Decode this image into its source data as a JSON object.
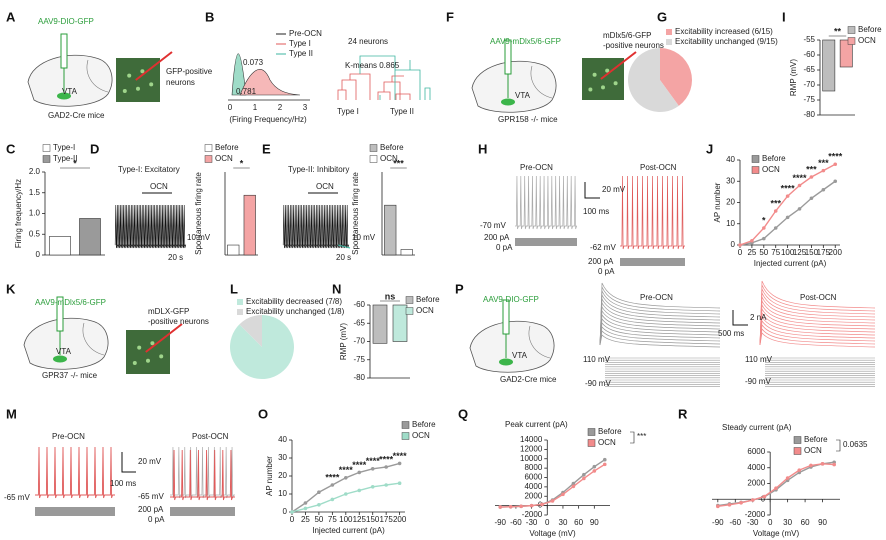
{
  "panels": [
    {
      "label": "A",
      "texts": [
        "AAV9-DIO-GFP",
        "VTA",
        "GAD2-Cre mice",
        "GFP-positive",
        "neurons"
      ]
    },
    {
      "label": "B",
      "texts": [
        "Pre-OCN",
        "Type I",
        "Type II",
        "0.073",
        "0.781",
        "0",
        "1",
        "2",
        "3",
        "(Firing Frequency/Hz)",
        "24 neurons",
        "K-means 0.865",
        "Type I",
        "Type II"
      ]
    },
    {
      "label": "C",
      "texts": []
    },
    {
      "label": "D",
      "texts": [
        "Type-I:  Excitatory",
        "OCN",
        "10 mV",
        "20 s"
      ]
    },
    {
      "label": "E",
      "texts": [
        "Type-II:  Inhibitory",
        "OCN",
        "10 mV",
        "20 s"
      ]
    },
    {
      "label": "F",
      "texts": [
        "AAV9-mDlx5/6-GFP",
        "VTA",
        "GPR158 -/- mice",
        "mDlx5/6-GFP",
        "-positive neurons"
      ]
    },
    {
      "label": "G",
      "texts": []
    },
    {
      "label": "H",
      "texts": [
        "Pre-OCN",
        "Post-OCN",
        "20 mV",
        "100 ms",
        "-70 mV",
        "200 pA",
        "0 pA",
        "-62 mV",
        "200 pA",
        "0 pA"
      ]
    },
    {
      "label": "I",
      "texts": []
    },
    {
      "label": "J",
      "texts": []
    },
    {
      "label": "K",
      "texts": [
        "AAV9-mDlx5/6-GFP",
        "VTA",
        "GPR37 -/- mice",
        "mDLX-GFP",
        "-positive neurons"
      ]
    },
    {
      "label": "L",
      "texts": []
    },
    {
      "label": "M",
      "texts": [
        "Pre-OCN",
        "Post-OCN",
        "20 mV",
        "100 ms",
        "-65 mV",
        "-65 mV",
        "200 pA",
        "0 pA"
      ]
    },
    {
      "label": "N",
      "texts": []
    },
    {
      "label": "O",
      "texts": []
    },
    {
      "label": "P",
      "texts": [
        "AAV9-DIO-GFP",
        "VTA",
        "GAD2-Cre mice",
        "Pre-OCN",
        "Post-OCN",
        "2 nA",
        "500 ms",
        "110 mV",
        "-90 mV",
        "110 mV",
        "-90 mV"
      ]
    },
    {
      "label": "Q",
      "texts": []
    },
    {
      "label": "R",
      "texts": []
    }
  ],
  "chart_data": [
    {
      "type": "bar",
      "ylabel": "Firing frequency/Hz",
      "ylim": [
        0,
        2
      ],
      "yticks": [
        0,
        0.5,
        {
          "value": 1,
          "label": "1.0"
        },
        1.5,
        {
          "value": 2,
          "label": "2.0"
        }
      ],
      "significance": "*",
      "series": [
        {
          "name": "Type-I",
          "color": "#ffffff",
          "values": [
            0.45
          ]
        },
        {
          "name": "Type-II",
          "color": "#9a9a9a",
          "values": [
            0.88
          ]
        }
      ]
    },
    {
      "type": "bar",
      "ylabel": "Spontaneous firing rate",
      "ylim": [
        0,
        2.5
      ],
      "significance": "*",
      "series": [
        {
          "name": "Before",
          "color": "#ffffff",
          "values": [
            0.3
          ]
        },
        {
          "name": "OCN",
          "color": "#f4a4a4",
          "values": [
            1.8
          ]
        }
      ]
    },
    {
      "type": "bar",
      "ylabel": "Spontaneous firing rate",
      "ylim": [
        0,
        1.5
      ],
      "significance": "***",
      "series": [
        {
          "name": "Before",
          "color": "#bdbdbd",
          "values": [
            0.9
          ]
        },
        {
          "name": "OCN",
          "color": "#ffffff",
          "values": [
            0.1
          ]
        }
      ]
    },
    {
      "type": "pie",
      "categories": [
        "Excitability increased (6/15)",
        "Excitability unchanged (9/15)"
      ],
      "values": [
        6,
        9
      ],
      "colors": [
        "#f4a4a4",
        "#d9d9d9"
      ]
    },
    {
      "type": "bar",
      "ylabel": "RMP (mV)",
      "ylim": [
        -80,
        -55
      ],
      "yticks": [
        -80,
        -75,
        -70,
        -65,
        -60,
        -55
      ],
      "significance": "**",
      "series": [
        {
          "name": "Before",
          "color": "#bdbdbd",
          "values": [
            -72
          ]
        },
        {
          "name": "OCN",
          "color": "#f4a4a4",
          "values": [
            -64
          ]
        }
      ]
    },
    {
      "type": "line",
      "xlabel": "Injected current (pA)",
      "ylabel": "AP number",
      "x": [
        0,
        25,
        50,
        75,
        100,
        125,
        150,
        175,
        200
      ],
      "xlim": [
        0,
        210
      ],
      "xticks": [
        0,
        25,
        50,
        75,
        100,
        125,
        150,
        175,
        200
      ],
      "ylim": [
        0,
        40
      ],
      "yticks": [
        0,
        10,
        20,
        30,
        40
      ],
      "significance": [
        null,
        null,
        "*",
        "***",
        "****",
        "****",
        "***",
        "***",
        "****"
      ],
      "series": [
        {
          "name": "Before",
          "color": "#9a9a9a",
          "values": [
            0,
            1,
            3,
            8,
            13,
            17,
            22,
            26,
            30
          ]
        },
        {
          "name": "OCN",
          "color": "#f28b8b",
          "values": [
            0,
            2,
            8,
            16,
            23,
            28,
            32,
            35,
            38
          ]
        }
      ]
    },
    {
      "type": "pie",
      "categories": [
        "Excitability decreased (7/8)",
        "Excitability unchanged (1/8)"
      ],
      "values": [
        7,
        1
      ],
      "colors": [
        "#bfe9dc",
        "#d9d9d9"
      ]
    },
    {
      "type": "bar",
      "ylabel": "RMP (mV)",
      "ylim": [
        -80,
        -60
      ],
      "yticks": [
        -80,
        -75,
        -70,
        -65,
        -60
      ],
      "significance": "ns",
      "series": [
        {
          "name": "Before",
          "color": "#bdbdbd",
          "values": [
            -70.5
          ]
        },
        {
          "name": "OCN",
          "color": "#bfe9dc",
          "values": [
            -70
          ]
        }
      ]
    },
    {
      "type": "line",
      "xlabel": "Injected current (pA)",
      "ylabel": "AP number",
      "x": [
        0,
        25,
        50,
        75,
        100,
        125,
        150,
        175,
        200
      ],
      "xlim": [
        0,
        210
      ],
      "xticks": [
        0,
        25,
        50,
        75,
        100,
        125,
        150,
        175,
        200
      ],
      "ylim": [
        0,
        40
      ],
      "yticks": [
        0,
        10,
        20,
        30,
        40
      ],
      "significance": [
        null,
        null,
        null,
        "****",
        "****",
        "****",
        "****",
        "****",
        "****"
      ],
      "series": [
        {
          "name": "Before",
          "color": "#9a9a9a",
          "values": [
            0,
            5,
            11,
            15,
            19,
            22,
            24,
            25,
            27
          ]
        },
        {
          "name": "OCN",
          "color": "#9fdcc8",
          "values": [
            0,
            2,
            4,
            7,
            10,
            12,
            14,
            15,
            16
          ]
        }
      ]
    },
    {
      "type": "line",
      "title": "Peak current (pA)",
      "xlabel": "Voltage (mV)",
      "x": [
        -90,
        -70,
        -50,
        -30,
        -10,
        10,
        30,
        50,
        70,
        90,
        110
      ],
      "xlim": [
        -100,
        120
      ],
      "xticks": [
        -90,
        -60,
        -30,
        0,
        30,
        60,
        90
      ],
      "ylim": [
        -2000,
        14000
      ],
      "yticks": [
        -2000,
        0,
        2000,
        4000,
        6000,
        8000,
        10000,
        12000,
        14000
      ],
      "significance": "***",
      "series": [
        {
          "name": "Before",
          "color": "#9a9a9a",
          "values": [
            -300,
            -250,
            -150,
            0,
            300,
            1200,
            2800,
            4700,
            6600,
            8300,
            9800
          ]
        },
        {
          "name": "OCN",
          "color": "#f28b8b",
          "values": [
            -300,
            -250,
            -150,
            0,
            250,
            1000,
            2400,
            4100,
            5800,
            7400,
            8800
          ]
        }
      ]
    },
    {
      "type": "line",
      "title": "Steady current (pA)",
      "xlabel": "Voltage (mV)",
      "x": [
        -90,
        -70,
        -50,
        -30,
        -10,
        10,
        30,
        50,
        70,
        90,
        110
      ],
      "xlim": [
        -100,
        120
      ],
      "xticks": [
        -90,
        -60,
        -30,
        0,
        30,
        60,
        90
      ],
      "ylim": [
        -2000,
        6000
      ],
      "yticks": [
        -2000,
        0,
        2000,
        4000,
        6000
      ],
      "significance": "0.0635",
      "series": [
        {
          "name": "Before",
          "color": "#9a9a9a",
          "values": [
            -800,
            -600,
            -400,
            -100,
            300,
            1200,
            2400,
            3400,
            4100,
            4500,
            4700
          ]
        },
        {
          "name": "OCN",
          "color": "#f28b8b",
          "values": [
            -900,
            -700,
            -450,
            -100,
            350,
            1400,
            2700,
            3700,
            4300,
            4500,
            4400
          ]
        }
      ]
    }
  ]
}
